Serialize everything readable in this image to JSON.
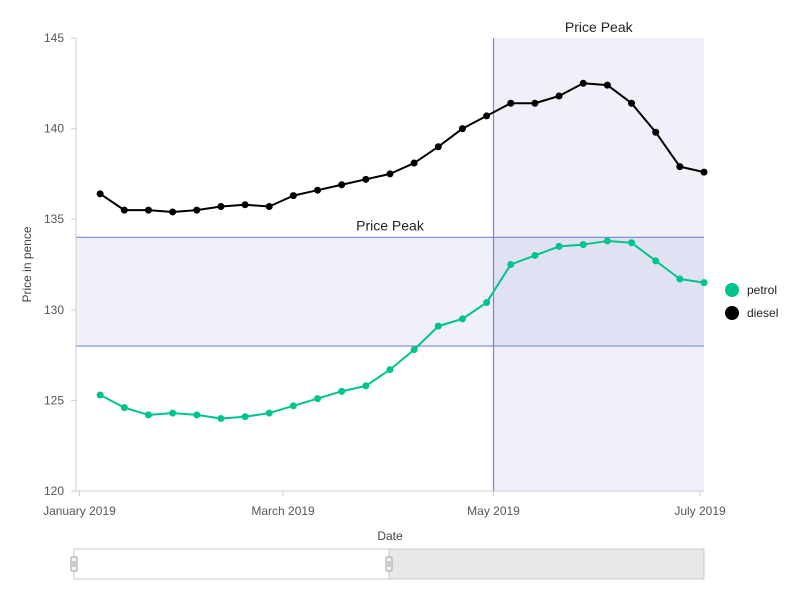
{
  "chart_data": {
    "type": "line",
    "title": "",
    "xlabel": "Date",
    "ylabel": "Price in pence",
    "x_ticks": [
      "January 2019",
      "March 2019",
      "May 2019",
      "July 2019"
    ],
    "y_ticks": [
      120,
      125,
      130,
      135,
      140,
      145
    ],
    "ylim": [
      120,
      145
    ],
    "xlim": [
      "2018-12-31",
      "2019-07-01"
    ],
    "grid": false,
    "legend_position": "right",
    "x": [
      "2019-01-07",
      "2019-01-14",
      "2019-01-21",
      "2019-01-28",
      "2019-02-04",
      "2019-02-11",
      "2019-02-18",
      "2019-02-25",
      "2019-03-04",
      "2019-03-11",
      "2019-03-18",
      "2019-03-25",
      "2019-04-01",
      "2019-04-08",
      "2019-04-15",
      "2019-04-22",
      "2019-04-29",
      "2019-05-06",
      "2019-05-13",
      "2019-05-20",
      "2019-05-27",
      "2019-06-03",
      "2019-06-10",
      "2019-06-17",
      "2019-06-24",
      "2019-07-01"
    ],
    "series": [
      {
        "name": "petrol",
        "color": "#00c48c",
        "values": [
          125.3,
          124.6,
          124.2,
          124.3,
          124.2,
          124.0,
          124.1,
          124.3,
          124.7,
          125.1,
          125.5,
          125.8,
          126.7,
          127.8,
          129.1,
          129.5,
          130.4,
          132.5,
          133.0,
          133.5,
          133.6,
          133.8,
          133.7,
          132.7,
          131.7,
          131.5
        ]
      },
      {
        "name": "diesel",
        "color": "#000000",
        "values": [
          136.4,
          135.5,
          135.5,
          135.4,
          135.5,
          135.7,
          135.8,
          135.7,
          136.3,
          136.6,
          136.9,
          137.2,
          137.5,
          138.1,
          139.0,
          140.0,
          140.7,
          141.4,
          141.4,
          141.8,
          142.5,
          142.4,
          141.4,
          139.8,
          137.9,
          137.6
        ]
      }
    ],
    "annotations": [
      {
        "type": "vertical_band",
        "label": "Price Peak",
        "x_start": "2019-05-01",
        "x_end": "2019-07-01"
      },
      {
        "type": "horizontal_band",
        "label": "Price Peak",
        "y_start": 128,
        "y_end": 134
      }
    ]
  },
  "legend": {
    "items": [
      {
        "label": "petrol",
        "color": "#00c48c"
      },
      {
        "label": "diesel",
        "color": "#000000"
      }
    ]
  },
  "slider": {
    "range_start": 0,
    "range_end": 0.5
  }
}
